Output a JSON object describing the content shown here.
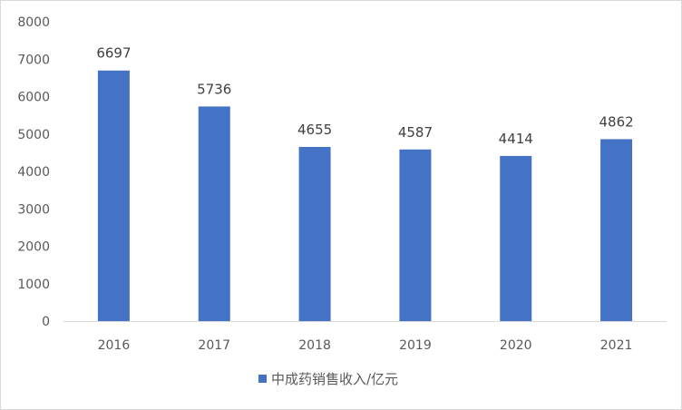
{
  "chart_data": {
    "type": "bar",
    "categories": [
      "2016",
      "2017",
      "2018",
      "2019",
      "2020",
      "2021"
    ],
    "series": [
      {
        "name": "中成药销售收入/亿元",
        "values": [
          6697,
          5736,
          4655,
          4587,
          4414,
          4862
        ],
        "color": "#4472C4"
      }
    ],
    "ylim": [
      0,
      8000
    ],
    "yticks": [
      "0",
      "1000",
      "2000",
      "3000",
      "4000",
      "5000",
      "6000",
      "7000",
      "8000"
    ],
    "grid": false,
    "legend_position": "bottom",
    "data_labels": true
  }
}
